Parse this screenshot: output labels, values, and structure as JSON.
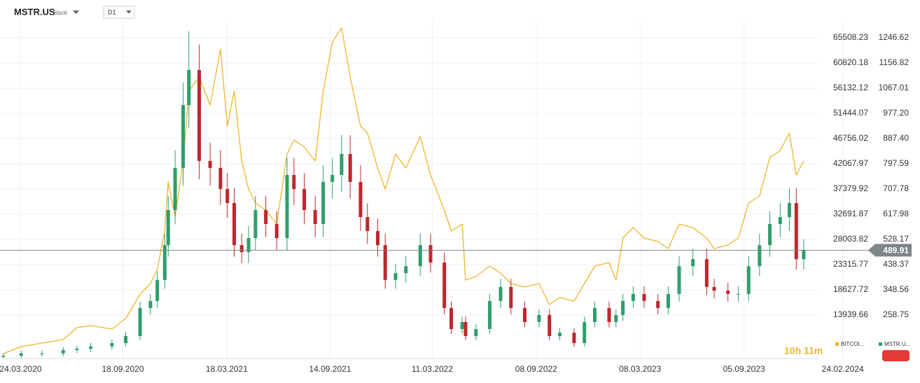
{
  "header": {
    "symbol": "MSTR.US",
    "kind": "Stock",
    "interval": "D1"
  },
  "timer": "10h 11m",
  "chart_data": {
    "type": "candlestick",
    "grid": true,
    "last_price": 489.91,
    "last_price_color": "#7d8589",
    "x": [
      "2020-02-23",
      "2020-03-25",
      "2020-04-30",
      "2020-06-06",
      "2020-06-30",
      "2020-07-24",
      "2020-08-30",
      "2020-09-23",
      "2020-10-18",
      "2020-11-05",
      "2020-11-17",
      "2020-11-30",
      "2020-12-06",
      "2020-12-18",
      "2021-01-01",
      "2021-01-11",
      "2021-01-29",
      "2021-02-17",
      "2021-03-07",
      "2021-03-19",
      "2021-03-31",
      "2021-04-13",
      "2021-04-25",
      "2021-05-07",
      "2021-05-25",
      "2021-06-13",
      "2021-07-01",
      "2021-07-13",
      "2021-07-31",
      "2021-08-19",
      "2021-09-02",
      "2021-09-18",
      "2021-10-04",
      "2021-10-19",
      "2021-11-06",
      "2021-11-18",
      "2021-12-06",
      "2021-12-19",
      "2022-01-06",
      "2022-01-24",
      "2022-02-18",
      "2022-03-08",
      "2022-04-01",
      "2022-04-13",
      "2022-05-02",
      "2022-05-08",
      "2022-05-26",
      "2022-06-19",
      "2022-07-08",
      "2022-07-26",
      "2022-08-19",
      "2022-09-13",
      "2022-10-01",
      "2022-10-19",
      "2022-11-13",
      "2022-12-01",
      "2022-12-19",
      "2023-01-13",
      "2023-01-25",
      "2023-02-06",
      "2023-02-24",
      "2023-03-15",
      "2023-04-08",
      "2023-04-26",
      "2023-05-15",
      "2023-06-08",
      "2023-07-02",
      "2023-07-15",
      "2023-08-08",
      "2023-08-26",
      "2023-09-13",
      "2023-10-02",
      "2023-10-20",
      "2023-11-07",
      "2023-11-23",
      "2023-12-05",
      "2023-12-18"
    ],
    "xlim": [
      "2020-02-17",
      "2024-03-10"
    ],
    "xticks": [
      {
        "value": "2020-03-24",
        "label": "24.03.2020"
      },
      {
        "value": "2020-09-18",
        "label": "18.09.2020"
      },
      {
        "value": "2021-03-18",
        "label": "18.03.2021"
      },
      {
        "value": "2021-09-14",
        "label": "14.09.2021"
      },
      {
        "value": "2022-03-11",
        "label": "11.03.2022"
      },
      {
        "value": "2022-09-08",
        "label": "08.09.2022"
      },
      {
        "value": "2023-03-08",
        "label": "08.03.2023"
      },
      {
        "value": "2023-09-05",
        "label": "05.09.2023"
      },
      {
        "value": "2024-02-24",
        "label": "24.02.2024"
      }
    ],
    "ylim": [
      5866,
      68892
    ],
    "yticks": [
      13939.66,
      18627.72,
      23315.77,
      28003.82,
      32691.87,
      37379.92,
      42067.97,
      46756.02,
      51444.07,
      56132.12,
      60820.18,
      65508.23
    ],
    "y2lim": [
      104.1,
      1311.5
    ],
    "y2ticks": [
      258.75,
      348.56,
      438.37,
      528.17,
      617.98,
      707.78,
      797.59,
      {
        "value": 887.4,
        "label": "887.40"
      },
      {
        "value": 977.2,
        "label": "977.20"
      },
      1067.01,
      1156.82,
      1246.62
    ],
    "series": [
      {
        "name": "BITCOI...",
        "type": "line",
        "axis": "y",
        "color": "#f0b429",
        "values": [
          6777,
          8080,
          8731,
          9382,
          11596,
          11986,
          11335,
          13289,
          17846,
          19800,
          22404,
          29566,
          38681,
          32171,
          42588,
          55610,
          58214,
          53005,
          63423,
          49099,
          55610,
          42588,
          37380,
          34775,
          33473,
          30869,
          43890,
          46495,
          45192,
          42588,
          55610,
          64725,
          67330,
          58214,
          49099,
          47797,
          41286,
          37380,
          43890,
          41286,
          47146,
          39984,
          33473,
          29566,
          30869,
          20451,
          21102,
          23055,
          21753,
          19800,
          19149,
          19800,
          15893,
          17195,
          16544,
          19800,
          23055,
          23706,
          20451,
          28264,
          30217,
          28264,
          27613,
          26311,
          30869,
          30217,
          28264,
          26311,
          26962,
          28264,
          34775,
          36077,
          43240,
          44542,
          47797,
          39984,
          42588
        ]
      },
      {
        "name": "MSTR.U...",
        "type": "candlestick",
        "axis": "y2",
        "color": "#2e9e6a",
        "up_color": "#2e9e6a",
        "down_color": "#c0262d",
        "open": [
          110,
          114,
          122,
          122,
          134,
          139,
          147,
          159,
          184,
          284,
          309,
          384,
          508,
          633,
          783,
          1007,
          1132,
          808,
          783,
          708,
          658,
          508,
          483,
          533,
          633,
          583,
          533,
          758,
          708,
          633,
          583,
          733,
          758,
          833,
          733,
          608,
          558,
          508,
          384,
          408,
          433,
          508,
          446,
          284,
          209,
          234,
          184,
          209,
          309,
          359,
          284,
          234,
          259,
          184,
          196,
          159,
          234,
          284,
          234,
          259,
          309,
          334,
          309,
          284,
          334,
          433,
          458,
          359,
          346,
          334,
          334,
          433,
          508,
          583,
          608,
          658,
          458
        ],
        "high": [
          123,
          132,
          132,
          145,
          150,
          159,
          172,
          199,
          307,
          334,
          415,
          549,
          684,
          846,
          1088,
          1270,
          1223,
          873,
          846,
          765,
          711,
          549,
          576,
          684,
          684,
          630,
          819,
          819,
          765,
          684,
          792,
          819,
          900,
          900,
          792,
          657,
          603,
          549,
          441,
          468,
          549,
          549,
          482,
          307,
          253,
          253,
          226,
          334,
          388,
          388,
          307,
          280,
          280,
          212,
          212,
          253,
          307,
          307,
          280,
          334,
          361,
          361,
          334,
          361,
          468,
          495,
          495,
          388,
          374,
          361,
          468,
          549,
          630,
          657,
          711,
          711,
          529
        ],
        "low": [
          105,
          105,
          112,
          112,
          123,
          128,
          135,
          146,
          169,
          261,
          284,
          353,
          467,
          582,
          720,
          926,
          743,
          720,
          651,
          605,
          467,
          444,
          444,
          490,
          536,
          490,
          490,
          651,
          582,
          536,
          536,
          674,
          697,
          674,
          559,
          513,
          467,
          353,
          353,
          375,
          398,
          410,
          261,
          192,
          192,
          169,
          169,
          192,
          284,
          261,
          215,
          215,
          169,
          169,
          146,
          146,
          215,
          215,
          215,
          238,
          284,
          284,
          261,
          261,
          307,
          398,
          330,
          318,
          307,
          307,
          307,
          398,
          467,
          536,
          559,
          421,
          421
        ],
        "close": [
          114,
          122,
          122,
          134,
          139,
          147,
          159,
          184,
          284,
          309,
          384,
          508,
          633,
          783,
          1007,
          1132,
          808,
          783,
          708,
          658,
          508,
          483,
          533,
          633,
          583,
          533,
          758,
          708,
          633,
          583,
          733,
          758,
          833,
          733,
          608,
          558,
          508,
          384,
          408,
          433,
          508,
          446,
          284,
          209,
          234,
          184,
          209,
          309,
          359,
          284,
          234,
          259,
          184,
          196,
          159,
          234,
          284,
          234,
          259,
          309,
          334,
          309,
          284,
          334,
          433,
          458,
          359,
          346,
          334,
          334,
          433,
          508,
          583,
          608,
          658,
          458,
          489.91
        ]
      }
    ]
  }
}
